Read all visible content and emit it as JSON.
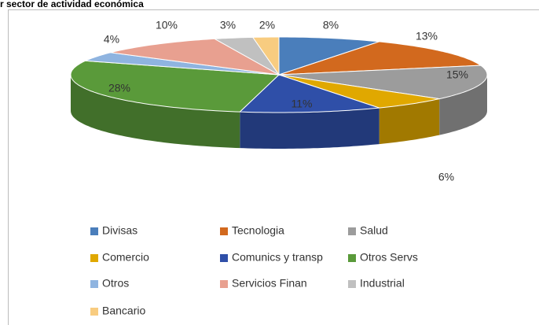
{
  "chart_data": {
    "type": "pie3d",
    "title": "r sector de actividad económica",
    "categories": [
      "Divisas",
      "Tecnologia",
      "Salud",
      "Comercio",
      "Comunics y transp",
      "Otros Servs",
      "Otros",
      "Servicios Finan",
      "Industrial",
      "Bancario"
    ],
    "values": [
      8,
      13,
      15,
      6,
      11,
      28,
      4,
      10,
      3,
      2
    ],
    "value_labels": [
      "8%",
      "13%",
      "15%",
      "6%",
      "11%",
      "28%",
      "4%",
      "10%",
      "3%",
      "2%"
    ],
    "colors": [
      "#4a7ebb",
      "#d2691e",
      "#9c9c9c",
      "#e0a800",
      "#2f4fa8",
      "#5a9a3a",
      "#8fb4e0",
      "#e8a090",
      "#c0c0c0",
      "#f8cc80"
    ],
    "legend": "bottom"
  }
}
